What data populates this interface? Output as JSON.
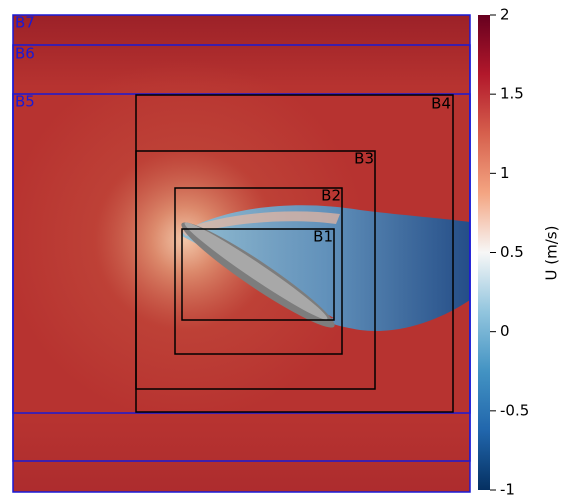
{
  "chart_data": {
    "type": "field",
    "colorbar_label": "U (m/s)",
    "clim": [
      -1,
      2
    ],
    "cticks": [
      -1,
      -0.5,
      0,
      0.5,
      1,
      1.5,
      2
    ],
    "colormap": [
      "#053061",
      "#2166ac",
      "#4393c3",
      "#92c5de",
      "#f7f7f7",
      "#f4a582",
      "#d6604d",
      "#b2182b",
      "#67001f"
    ],
    "regions": [
      "B1",
      "B2",
      "B3",
      "B4",
      "B5",
      "B6",
      "B7"
    ]
  }
}
